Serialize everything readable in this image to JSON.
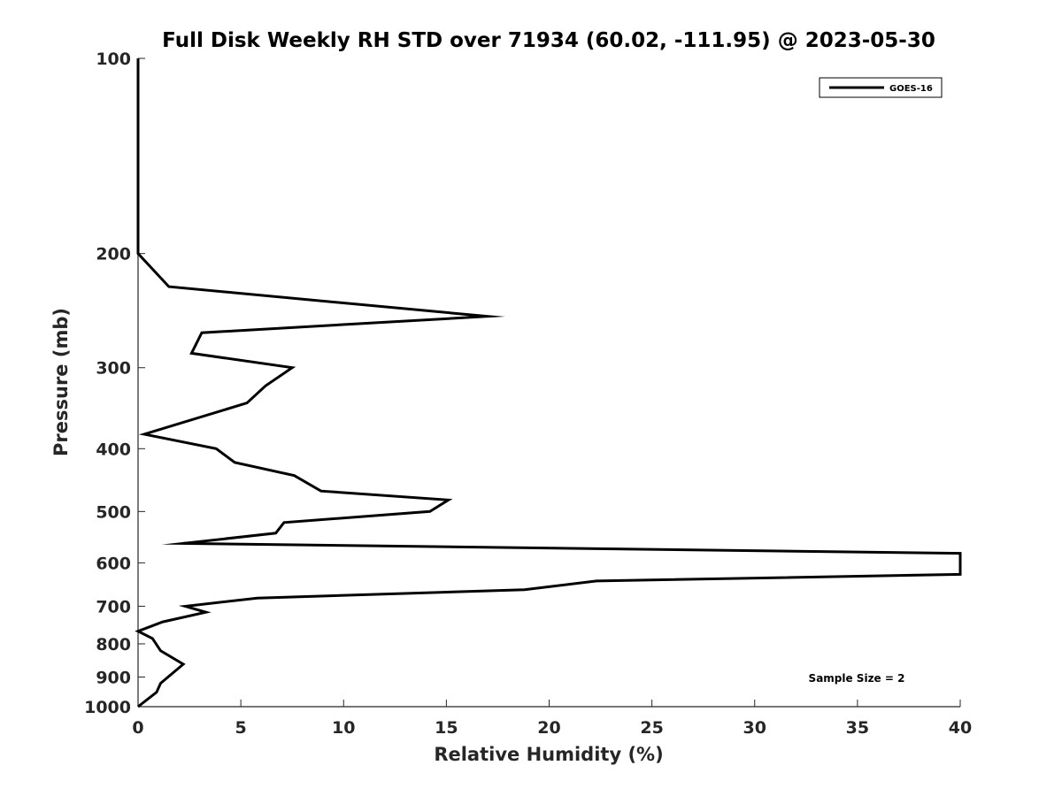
{
  "chart_data": {
    "type": "line",
    "title": "Full Disk Weekly RH STD over 71934 (60.02, -111.95) @ 2023-05-30",
    "xlabel": "Relative Humidity (%)",
    "ylabel": "Pressure (mb)",
    "xlim": [
      0,
      40
    ],
    "ylim": [
      100,
      1000
    ],
    "yscale": "log",
    "y_reversed": true,
    "grid": false,
    "legend_position": "top-right",
    "xticks": [
      0,
      5,
      10,
      15,
      20,
      25,
      30,
      35,
      40
    ],
    "yticks": [
      100,
      200,
      300,
      400,
      500,
      600,
      700,
      800,
      900,
      1000
    ],
    "annotation": "Sample Size = 2",
    "series": [
      {
        "name": "GOES-16",
        "color": "#000000",
        "points": [
          [
            0.0,
            100
          ],
          [
            0.0,
            150
          ],
          [
            0.0,
            200
          ],
          [
            1.5,
            225
          ],
          [
            17.0,
            250
          ],
          [
            3.1,
            265
          ],
          [
            2.6,
            285
          ],
          [
            7.5,
            300
          ],
          [
            6.2,
            320
          ],
          [
            5.3,
            340
          ],
          [
            0.3,
            380
          ],
          [
            3.8,
            400
          ],
          [
            4.7,
            420
          ],
          [
            7.6,
            440
          ],
          [
            8.9,
            465
          ],
          [
            15.1,
            480
          ],
          [
            14.2,
            500
          ],
          [
            7.1,
            520
          ],
          [
            6.7,
            540
          ],
          [
            2.2,
            560
          ],
          [
            40.0,
            580
          ],
          [
            40.0,
            625
          ],
          [
            22.3,
            640
          ],
          [
            18.8,
            660
          ],
          [
            5.8,
            680
          ],
          [
            2.3,
            700
          ],
          [
            3.3,
            715
          ],
          [
            1.2,
            740
          ],
          [
            0.0,
            765
          ],
          [
            0.7,
            785
          ],
          [
            1.1,
            820
          ],
          [
            2.2,
            860
          ],
          [
            1.1,
            920
          ],
          [
            0.9,
            950
          ],
          [
            0.0,
            1000
          ]
        ]
      }
    ]
  }
}
